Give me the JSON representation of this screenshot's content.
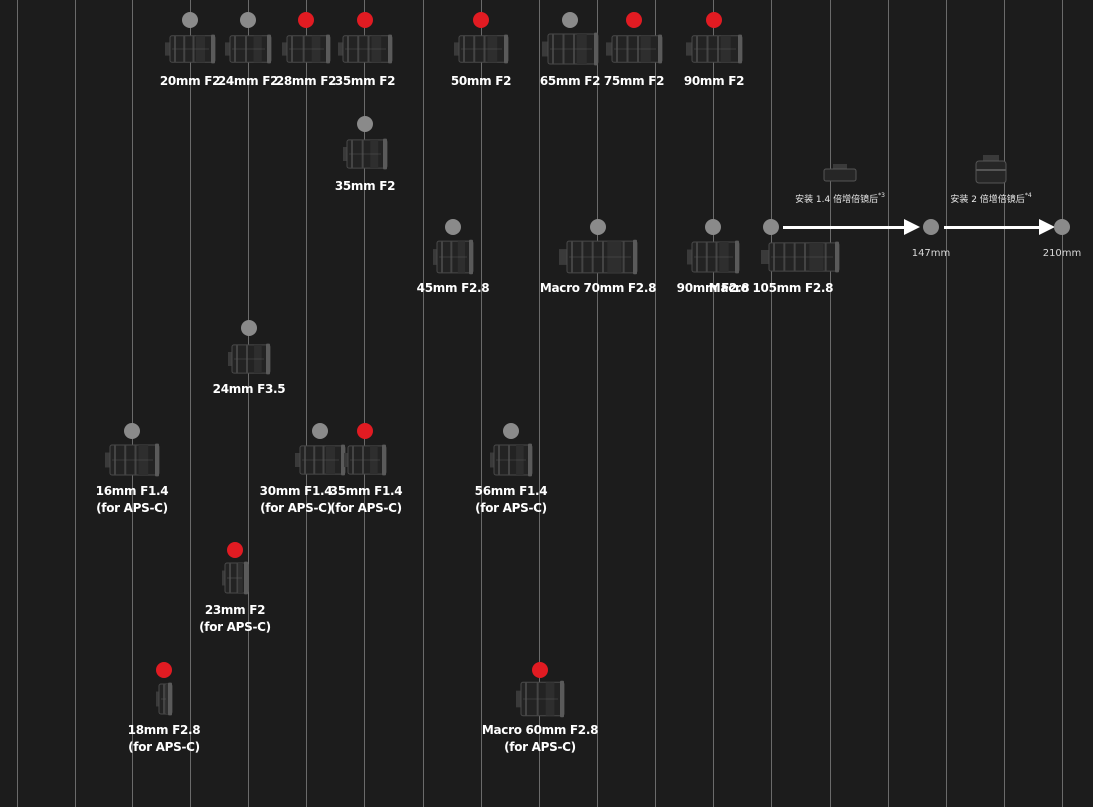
{
  "colors": {
    "background": "#1c1c1c",
    "grid_line": "#6a6a6a",
    "dot_gray": "#8a8a8a",
    "dot_red": "#e11b22",
    "label": "#ffffff"
  },
  "lenses": [
    {
      "id": "20mm-f2",
      "lines": [
        "20mm F2"
      ],
      "dot": "gray"
    },
    {
      "id": "24mm-f2",
      "lines": [
        "24mm F2"
      ],
      "dot": "gray"
    },
    {
      "id": "28mm-f2",
      "lines": [
        "28mm F2"
      ],
      "dot": "red"
    },
    {
      "id": "35mm-f2",
      "lines": [
        "35mm F2"
      ],
      "dot": "red"
    },
    {
      "id": "50mm-f2",
      "lines": [
        "50mm F2"
      ],
      "dot": "red"
    },
    {
      "id": "65mm-f2",
      "lines": [
        "65mm F2"
      ],
      "dot": "gray"
    },
    {
      "id": "75mm-f2",
      "lines": [
        "75mm F2"
      ],
      "dot": "red"
    },
    {
      "id": "90mm-f2",
      "lines": [
        "90mm F2"
      ],
      "dot": "red"
    },
    {
      "id": "35mm-f2-compact",
      "lines": [
        "35mm F2"
      ],
      "dot": "gray"
    },
    {
      "id": "45mm-f28",
      "lines": [
        "45mm F2.8"
      ],
      "dot": "gray"
    },
    {
      "id": "macro-70mm-f28",
      "lines": [
        "Macro 70mm F2.8"
      ],
      "dot": "gray"
    },
    {
      "id": "90mm-f28",
      "lines": [
        "90mm F2.8"
      ],
      "dot": "gray"
    },
    {
      "id": "macro-105mm-f28",
      "lines": [
        "Macro 105mm F2.8"
      ],
      "dot": "gray"
    },
    {
      "id": "24mm-f35",
      "lines": [
        "24mm F3.5"
      ],
      "dot": "gray"
    },
    {
      "id": "16mm-f14",
      "lines": [
        "16mm F1.4",
        "(for APS-C)"
      ],
      "dot": "gray"
    },
    {
      "id": "30mm-f14",
      "lines": [
        "30mm F1.4",
        "(for APS-C)"
      ],
      "dot": "gray"
    },
    {
      "id": "35mm-f14",
      "lines": [
        "35mm F1.4",
        "(for APS-C)"
      ],
      "dot": "red"
    },
    {
      "id": "56mm-f14",
      "lines": [
        "56mm F1.4",
        "(for APS-C)"
      ],
      "dot": "gray"
    },
    {
      "id": "23mm-f2",
      "lines": [
        "23mm F2",
        "(for APS-C)"
      ],
      "dot": "red"
    },
    {
      "id": "18mm-f28",
      "lines": [
        "18mm F2.8",
        "(for APS-C)"
      ],
      "dot": "red"
    },
    {
      "id": "macro-60mm-f28",
      "lines": [
        "Macro 60mm F2.8",
        "(for APS-C)"
      ],
      "dot": "red"
    }
  ],
  "teleconverters": [
    {
      "id": "tc-1-4x",
      "note": "安装 1.4 倍增倍镜后",
      "mark": "*3",
      "result": "147mm"
    },
    {
      "id": "tc-2x",
      "note": "安装 2 倍增倍镜后",
      "mark": "*4",
      "result": "210mm"
    }
  ]
}
